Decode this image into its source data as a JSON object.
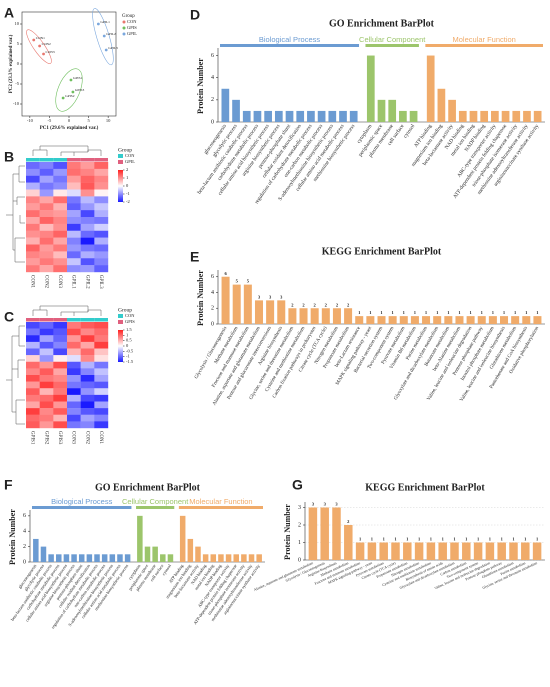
{
  "chart_data": [
    {
      "type": "scatter",
      "panel": "A",
      "xlabel": "PC1 (29.6% explained var.)",
      "ylabel": "PC2 (23.3% explained var.)",
      "legend_title": "Group",
      "legend": "right",
      "xlim": [
        -12,
        12
      ],
      "ylim": [
        -13,
        13
      ],
      "xticks": [
        -10,
        -5,
        0,
        5,
        10
      ],
      "yticks": [
        -10,
        -5,
        0,
        5,
        10
      ],
      "series": [
        {
          "name": "CON",
          "color": "#e8776f",
          "x": [
            -9,
            -7.5,
            -6.5
          ],
          "y": [
            6,
            4.5,
            2.5
          ],
          "labels": [
            "CON1",
            "CON2",
            "CON3"
          ]
        },
        {
          "name": "GPIS",
          "color": "#6fbf5e",
          "x": [
            0.5,
            -1.5,
            1
          ],
          "y": [
            -4,
            -8.5,
            -7
          ],
          "labels": [
            "GPIS1",
            "GPIS2",
            "GPIS3"
          ]
        },
        {
          "name": "GPIL",
          "color": "#7aa7dd",
          "x": [
            7.5,
            9,
            9.5
          ],
          "y": [
            10,
            7,
            3.5
          ],
          "labels": [
            "GPIL1",
            "GPIL2",
            "GPIL3"
          ]
        }
      ]
    },
    {
      "type": "heatmap",
      "panel": "B",
      "legend_title": "Group",
      "columns": [
        "CON1",
        "CON2",
        "CON3",
        "GPIL1",
        "GPIL2",
        "GPIL3"
      ],
      "column_groups": [
        {
          "name": "CON",
          "color": "#33cccc"
        },
        {
          "name": "GPIL",
          "color": "#e0607e"
        }
      ],
      "colorscale": [
        "#1a1aff",
        "#ffffff",
        "#ff2020"
      ],
      "zlim": [
        -2,
        2
      ],
      "zticks": [
        2,
        1,
        0,
        -1,
        -2
      ],
      "matrix": [
        [
          -1.3,
          -1.1,
          -1.5,
          1.2,
          0.9,
          1.4
        ],
        [
          -1.0,
          -1.4,
          -0.9,
          1.3,
          1.1,
          0.8
        ],
        [
          -1.6,
          -0.8,
          -1.2,
          0.9,
          1.4,
          1.1
        ],
        [
          -0.7,
          -1.2,
          -1.0,
          0.6,
          1.5,
          1.0
        ],
        [
          0.4,
          -0.9,
          0.2,
          -0.3,
          1.0,
          0.1
        ],
        [
          1.1,
          0.8,
          1.3,
          -1.2,
          -0.6,
          -1.0
        ],
        [
          0.9,
          1.2,
          0.7,
          -1.4,
          -0.9,
          -0.5
        ],
        [
          1.3,
          1.0,
          0.9,
          -0.8,
          -1.6,
          -0.7
        ],
        [
          0.8,
          1.4,
          1.1,
          -1.0,
          -1.1,
          -1.2
        ],
        [
          1.2,
          0.6,
          1.0,
          -1.7,
          -0.8,
          -0.4
        ],
        [
          1.0,
          1.1,
          1.4,
          -0.6,
          -1.3,
          -1.5
        ],
        [
          0.7,
          1.3,
          0.8,
          -1.1,
          -2.0,
          -0.7
        ],
        [
          1.4,
          0.9,
          1.2,
          -0.9,
          -1.2,
          -1.3
        ],
        [
          1.1,
          1.0,
          0.6,
          -1.3,
          -0.7,
          -0.9
        ],
        [
          0.9,
          1.2,
          1.0,
          -0.5,
          -1.5,
          -1.1
        ],
        [
          1.2,
          0.8,
          1.3,
          -1.0,
          -0.9,
          -1.4
        ]
      ]
    },
    {
      "type": "heatmap",
      "panel": "C",
      "legend_title": "Group",
      "columns": [
        "GPIS1",
        "GPIS2",
        "GPIS3",
        "CON3",
        "CON2",
        "CON1"
      ],
      "column_groups": [
        {
          "name": "CON",
          "color": "#33cccc"
        },
        {
          "name": "GPIS",
          "color": "#e0607e"
        }
      ],
      "colorscale": [
        "#1a1aff",
        "#ffffff",
        "#ff2020"
      ],
      "zlim": [
        -1.5,
        1.5
      ],
      "zticks": [
        1.5,
        1,
        0.5,
        0,
        -0.5,
        -1,
        -1.5
      ],
      "matrix": [
        [
          -1.2,
          -1.0,
          -1.3,
          0.9,
          1.1,
          1.2
        ],
        [
          -0.9,
          -1.3,
          -1.1,
          1.2,
          0.8,
          1.0
        ],
        [
          -1.4,
          -0.6,
          -1.0,
          0.7,
          1.3,
          0.9
        ],
        [
          -0.5,
          -1.1,
          -0.8,
          1.0,
          0.6,
          1.3
        ],
        [
          -1.0,
          -0.4,
          -1.2,
          0.5,
          1.0,
          0.4
        ],
        [
          0.3,
          -0.7,
          0.1,
          -0.2,
          0.8,
          0.2
        ],
        [
          1.0,
          0.7,
          1.2,
          -1.1,
          -0.5,
          -0.9
        ],
        [
          0.8,
          1.1,
          0.6,
          -1.3,
          -0.8,
          -0.4
        ],
        [
          1.2,
          0.9,
          0.8,
          -0.7,
          -1.4,
          -0.6
        ],
        [
          0.7,
          1.3,
          1.0,
          -0.9,
          -1.0,
          -1.1
        ],
        [
          1.1,
          0.5,
          0.9,
          -1.5,
          -0.7,
          -0.3
        ],
        [
          0.9,
          1.0,
          1.3,
          -0.5,
          -1.2,
          -1.3
        ],
        [
          0.6,
          1.2,
          0.7,
          -1.0,
          -1.5,
          -0.6
        ],
        [
          1.3,
          0.8,
          1.1,
          -0.8,
          -1.1,
          -1.2
        ],
        [
          1.0,
          0.9,
          0.5,
          -1.2,
          -0.6,
          -0.8
        ],
        [
          1.1,
          0.7,
          1.2,
          -0.9,
          -0.8,
          -1.3
        ]
      ]
    },
    {
      "type": "bar",
      "panel": "D",
      "title": "GO Enrichment BarPlot",
      "ylabel": "Protein Number",
      "ylim": [
        0,
        6.5
      ],
      "yticks": [
        0,
        2,
        4,
        6
      ],
      "grid": false,
      "data_labels": false,
      "groups": [
        {
          "name": "Biological Process",
          "color": "#6b9bd2",
          "categories": [
            "gluconeogenesis",
            "glycolytic process",
            "beta-lactam antibiotic catabolic process",
            "carbohydrate metabolic process",
            "cellular amino acid biosynthetic process",
            "arginine biosynthetic process",
            "pentose-phosphate shunt",
            "cellular oxidant detoxification",
            "regulation of carbohydrate metabolic process",
            "one-carbon metabolic process",
            "S-adenosylmethionine biosynthetic process",
            "cellular amino acid metabolic process",
            "methionine biosynthetic process"
          ],
          "values": [
            3,
            2,
            1,
            1,
            1,
            1,
            1,
            1,
            1,
            1,
            1,
            1,
            1
          ]
        },
        {
          "name": "Cellular Component",
          "color": "#9cc56b",
          "categories": [
            "cytoplasm",
            "periplasmic space",
            "plasma membrane",
            "cell surface",
            "cytosol"
          ],
          "values": [
            6,
            2,
            2,
            1,
            1
          ]
        },
        {
          "name": "Molecular Function",
          "color": "#f0ab6a",
          "categories": [
            "ATP binding",
            "magnesium ion binding",
            "beta-lactamase activity",
            "NAD binding",
            "metal ion binding",
            "NADP binding",
            "ABC-type transporter activity",
            "ATP-dependent protein folding chaperone",
            "triose-phosphate isomerase activity",
            "methionine adenosyltransferase activity",
            "argininosuccinate synthase activity"
          ],
          "values": [
            6,
            3,
            2,
            1,
            1,
            1,
            1,
            1,
            1,
            1,
            1
          ]
        }
      ]
    },
    {
      "type": "bar",
      "panel": "E",
      "title": "KEGG Enrichment BarPlot",
      "ylabel": "Protein Number",
      "ylim": [
        0,
        6.6
      ],
      "yticks": [
        0,
        2,
        4,
        6
      ],
      "grid": false,
      "data_labels": true,
      "color": "#f0ab6a",
      "categories": [
        "Glycolysis / Gluconeogenesis",
        "Methane metabolism",
        "Fructose and mannose metabolism",
        "Alanine, aspartate and glutamate metabolism",
        "Pentose and glucuronate interconversions",
        "Arginine biosynthesis",
        "Glycine, serine and threonine metabolism",
        "Cysteine and methionine metabolism",
        "Carbon fixation pathways in prokaryotes",
        "Citrate cycle (TCA cycle)",
        "Nitrogen metabolism",
        "Propanoate metabolism",
        "beta-Lactam resistance",
        "MAPK signaling pathway - yeast",
        "Bacterial secretion system",
        "Two-component system",
        "Pyruvate metabolism",
        "Vitamin B6 metabolism",
        "Purine metabolism",
        "Glyoxylate and dicarboxylate metabolism",
        "Butanoate metabolism",
        "beta-Alanine metabolism",
        "Valine, leucine and isoleucine degradation",
        "Pentose phosphate pathway",
        "Inositol phosphate metabolism",
        "Valine, leucine and isoleucine biosynthesis",
        "Glutathione metabolism",
        "Pantothenate and CoA biosynthesis",
        "Oxidative phosphorylation"
      ],
      "values": [
        6,
        5,
        5,
        3,
        3,
        3,
        2,
        2,
        2,
        2,
        2,
        2,
        1,
        1,
        1,
        1,
        1,
        1,
        1,
        1,
        1,
        1,
        1,
        1,
        1,
        1,
        1,
        1,
        1
      ]
    },
    {
      "type": "bar",
      "panel": "F",
      "title": "GO Enrichment BarPlot",
      "ylabel": "Protein Number",
      "ylim": [
        0,
        6.5
      ],
      "yticks": [
        0,
        2,
        4,
        6
      ],
      "grid": false,
      "data_labels": false,
      "groups": [
        {
          "name": "Biological Process",
          "color": "#6b9bd2",
          "categories": [
            "gluconeogenesis",
            "glycolytic process",
            "beta-lactam antibiotic catabolic process",
            "carbohydrate metabolic process",
            "cellular amino acid biosynthetic process",
            "arginine biosynthetic process",
            "pentose-phosphate shunt",
            "cellular oxidant detoxification",
            "regulation of carbohydrate metabolic process",
            "one-carbon metabolic process",
            "S-adenosylmethionine biosynthetic process",
            "cellular amino acid metabolic process",
            "methionine biosynthetic process"
          ],
          "values": [
            3,
            2,
            1,
            1,
            1,
            1,
            1,
            1,
            1,
            1,
            1,
            1,
            1
          ]
        },
        {
          "name": "Cellular Component",
          "color": "#9cc56b",
          "categories": [
            "cytoplasm",
            "periplasmic space",
            "plasma membrane",
            "cell surface",
            "cytosol"
          ],
          "values": [
            6,
            2,
            2,
            1,
            1
          ]
        },
        {
          "name": "Molecular Function",
          "color": "#f0ab6a",
          "categories": [
            "ATP binding",
            "magnesium ion binding",
            "beta-lactamase activity",
            "NAD binding",
            "metal ion binding",
            "NADP binding",
            "ABC-type transporter activity",
            "ATP-dependent protein folding chaperone",
            "triose-phosphate isomerase activity",
            "methionine adenosyltransferase activity",
            "argininosuccinate synthase activity"
          ],
          "values": [
            6,
            3,
            2,
            1,
            1,
            1,
            1,
            1,
            1,
            1,
            1
          ]
        }
      ]
    },
    {
      "type": "bar",
      "panel": "G",
      "title": "KEGG Enrichment BarPlot",
      "ylabel": "Protein Number",
      "ylim": [
        0,
        3.2
      ],
      "yticks": [
        0,
        1,
        2,
        3
      ],
      "grid": true,
      "data_labels": true,
      "color": "#f0ab6a",
      "categories": [
        "Alanine, aspartate and glutamate metabolism",
        "Glycolysis / Gluconeogenesis",
        "Arginine biosynthesis",
        "Methane metabolism",
        "Fructose and mannose metabolism",
        "MAPK signaling pathway - yeast",
        "Pyruvate metabolism",
        "Citrate cycle (TCA cycle)",
        "Propanoate metabolism",
        "Nitrogen metabolism",
        "Cysteine and methionine metabolism",
        "Biosynthesis of amino acids",
        "Glyoxylate and dicarboxylate metabolism",
        "Carbon metabolism",
        "Two-component system",
        "Valine, leucine and isoleucine degradation",
        "Pentose phosphate pathway",
        "Glutathione metabolism",
        "Purine metabolism",
        "Glycine, serine and threonine metabolism"
      ],
      "values": [
        3,
        3,
        3,
        2,
        1,
        1,
        1,
        1,
        1,
        1,
        1,
        1,
        1,
        1,
        1,
        1,
        1,
        1,
        1,
        1
      ]
    }
  ]
}
